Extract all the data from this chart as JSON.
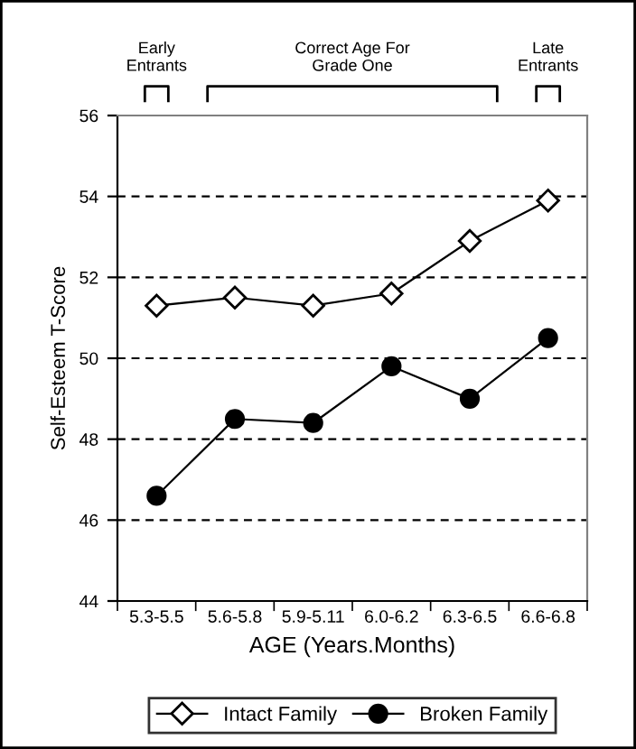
{
  "chart_data": {
    "type": "line",
    "xlabel": "AGE (Years.Months)",
    "ylabel": "Self-Esteem T-Score",
    "categories": [
      "5.3-5.5",
      "5.6-5.8",
      "5.9-5.11",
      "6.0-6.2",
      "6.3-6.5",
      "6.6-6.8"
    ],
    "series": [
      {
        "name": "Intact Family",
        "color": "#000000",
        "marker": "diamond",
        "values": [
          51.3,
          51.5,
          51.3,
          51.6,
          52.9,
          53.9
        ]
      },
      {
        "name": "Broken Family",
        "color": "#000000",
        "marker": "circle",
        "values": [
          46.6,
          48.5,
          48.4,
          49.8,
          49.0,
          50.5
        ]
      }
    ],
    "ylim": [
      44,
      56
    ],
    "yticks": [
      44,
      46,
      48,
      50,
      52,
      54,
      56
    ],
    "grid": "y",
    "legend": "bottom",
    "line_style": "solid",
    "annotations": [
      "Early\nEntrants",
      "Correct Age For\nGrade One",
      "Late\nEntrants"
    ]
  }
}
